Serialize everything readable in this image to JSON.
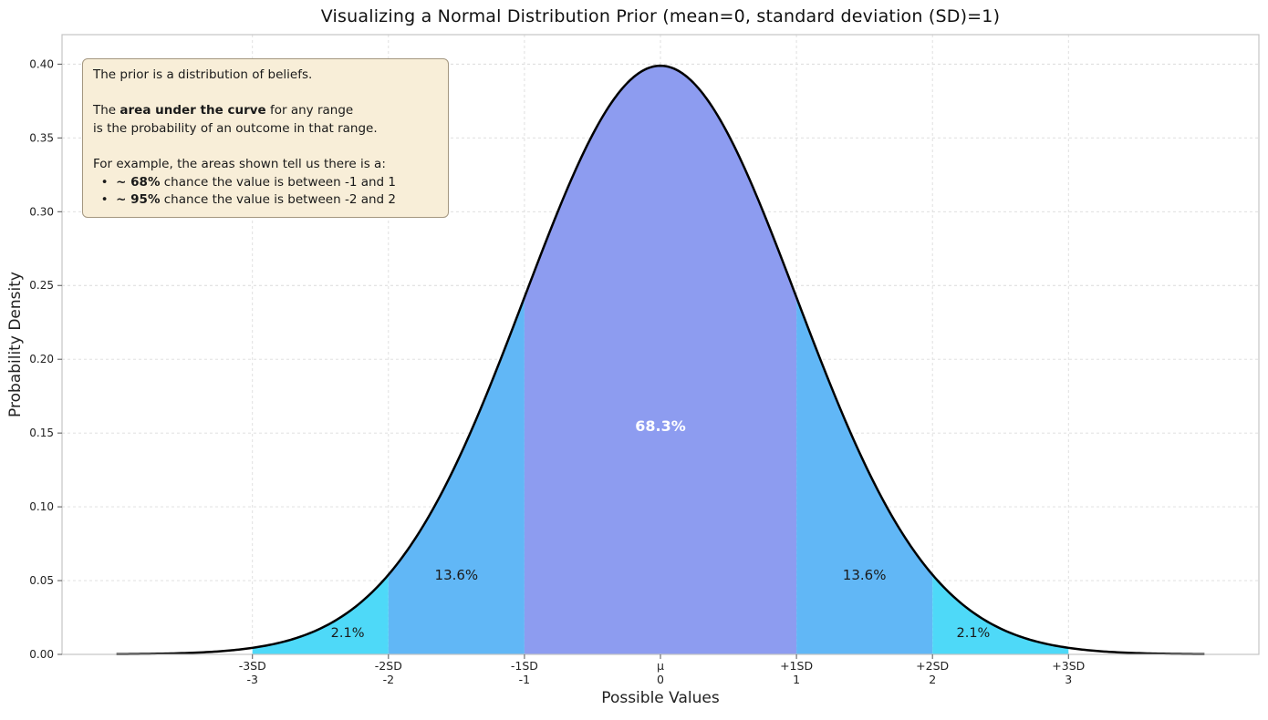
{
  "chart_data": {
    "type": "area",
    "title": "Visualizing a Normal Distribution Prior (mean=0, standard deviation (SD)=1)",
    "xlabel": "Possible Values",
    "ylabel": "Probability Density",
    "xlim": [
      -4.4,
      4.4
    ],
    "ylim": [
      0,
      0.42
    ],
    "grid": {
      "on": true,
      "color": "#dcdcdc",
      "dash": "3,3"
    },
    "spine_color": "#c4c4c4",
    "curve": {
      "distribution": "normal",
      "mean": 0,
      "sd": 1,
      "x_range": [
        -4,
        4
      ],
      "color": "#000000",
      "peak_density": 0.399
    },
    "y_ticks": [
      {
        "value": 0.0,
        "label": "0.00"
      },
      {
        "value": 0.05,
        "label": "0.05"
      },
      {
        "value": 0.1,
        "label": "0.10"
      },
      {
        "value": 0.15,
        "label": "0.15"
      },
      {
        "value": 0.2,
        "label": "0.20"
      },
      {
        "value": 0.25,
        "label": "0.25"
      },
      {
        "value": 0.3,
        "label": "0.30"
      },
      {
        "value": 0.35,
        "label": "0.35"
      },
      {
        "value": 0.4,
        "label": "0.40"
      }
    ],
    "x_ticks": [
      {
        "value": -3,
        "line1": "-3SD",
        "line2": "-3"
      },
      {
        "value": -2,
        "line1": "-2SD",
        "line2": "-2"
      },
      {
        "value": -1,
        "line1": "-1SD",
        "line2": "-1"
      },
      {
        "value": 0,
        "line1": "μ",
        "line2": "0"
      },
      {
        "value": 1,
        "line1": "+1SD",
        "line2": "1"
      },
      {
        "value": 2,
        "line1": "+2SD",
        "line2": "2"
      },
      {
        "value": 3,
        "line1": "+3SD",
        "line2": "3"
      }
    ],
    "regions": [
      {
        "from": -3,
        "to": -2,
        "color": "#4ed9f8",
        "label": "2.1%",
        "label_x": -2.3,
        "label_y": 0.015,
        "label_color": "#1a1a1a",
        "label_bold": false,
        "label_size": 14.5
      },
      {
        "from": -2,
        "to": -1,
        "color": "#61b7f6",
        "label": "13.6%",
        "label_x": -1.5,
        "label_y": 0.054,
        "label_color": "#1a1a1a",
        "label_bold": false,
        "label_size": 15
      },
      {
        "from": -1,
        "to": 1,
        "color": "#8d9cf0",
        "label": "68.3%",
        "label_x": 0,
        "label_y": 0.155,
        "label_color": "#ffffff",
        "label_bold": true,
        "label_size": 16
      },
      {
        "from": 1,
        "to": 2,
        "color": "#61b7f6",
        "label": "13.6%",
        "label_x": 1.5,
        "label_y": 0.054,
        "label_color": "#1a1a1a",
        "label_bold": false,
        "label_size": 15
      },
      {
        "from": 2,
        "to": 3,
        "color": "#4ed9f8",
        "label": "2.1%",
        "label_x": 2.3,
        "label_y": 0.015,
        "label_color": "#1a1a1a",
        "label_bold": false,
        "label_size": 14.5
      }
    ],
    "annotation": {
      "bg_color": "#f8eed8",
      "border_color": "#a49780",
      "lines": [
        [
          {
            "t": "The prior is a distribution of beliefs.",
            "b": false
          }
        ],
        [],
        [
          {
            "t": "The ",
            "b": false
          },
          {
            "t": "area under the curve",
            "b": true
          },
          {
            "t": " for any range",
            "b": false
          }
        ],
        [
          {
            "t": "is the probability of an outcome in that range.",
            "b": false
          }
        ],
        [],
        [
          {
            "t": "For example, the areas shown tell us there is a:",
            "b": false
          }
        ],
        [
          {
            "t": "  •  ",
            "b": false
          },
          {
            "t": "~ 68%",
            "b": true
          },
          {
            "t": " chance the value is between -1 and 1",
            "b": false
          }
        ],
        [
          {
            "t": "  •  ",
            "b": false
          },
          {
            "t": "~ 95%",
            "b": true
          },
          {
            "t": " chance the value is between -2 and 2",
            "b": false
          }
        ]
      ]
    }
  }
}
